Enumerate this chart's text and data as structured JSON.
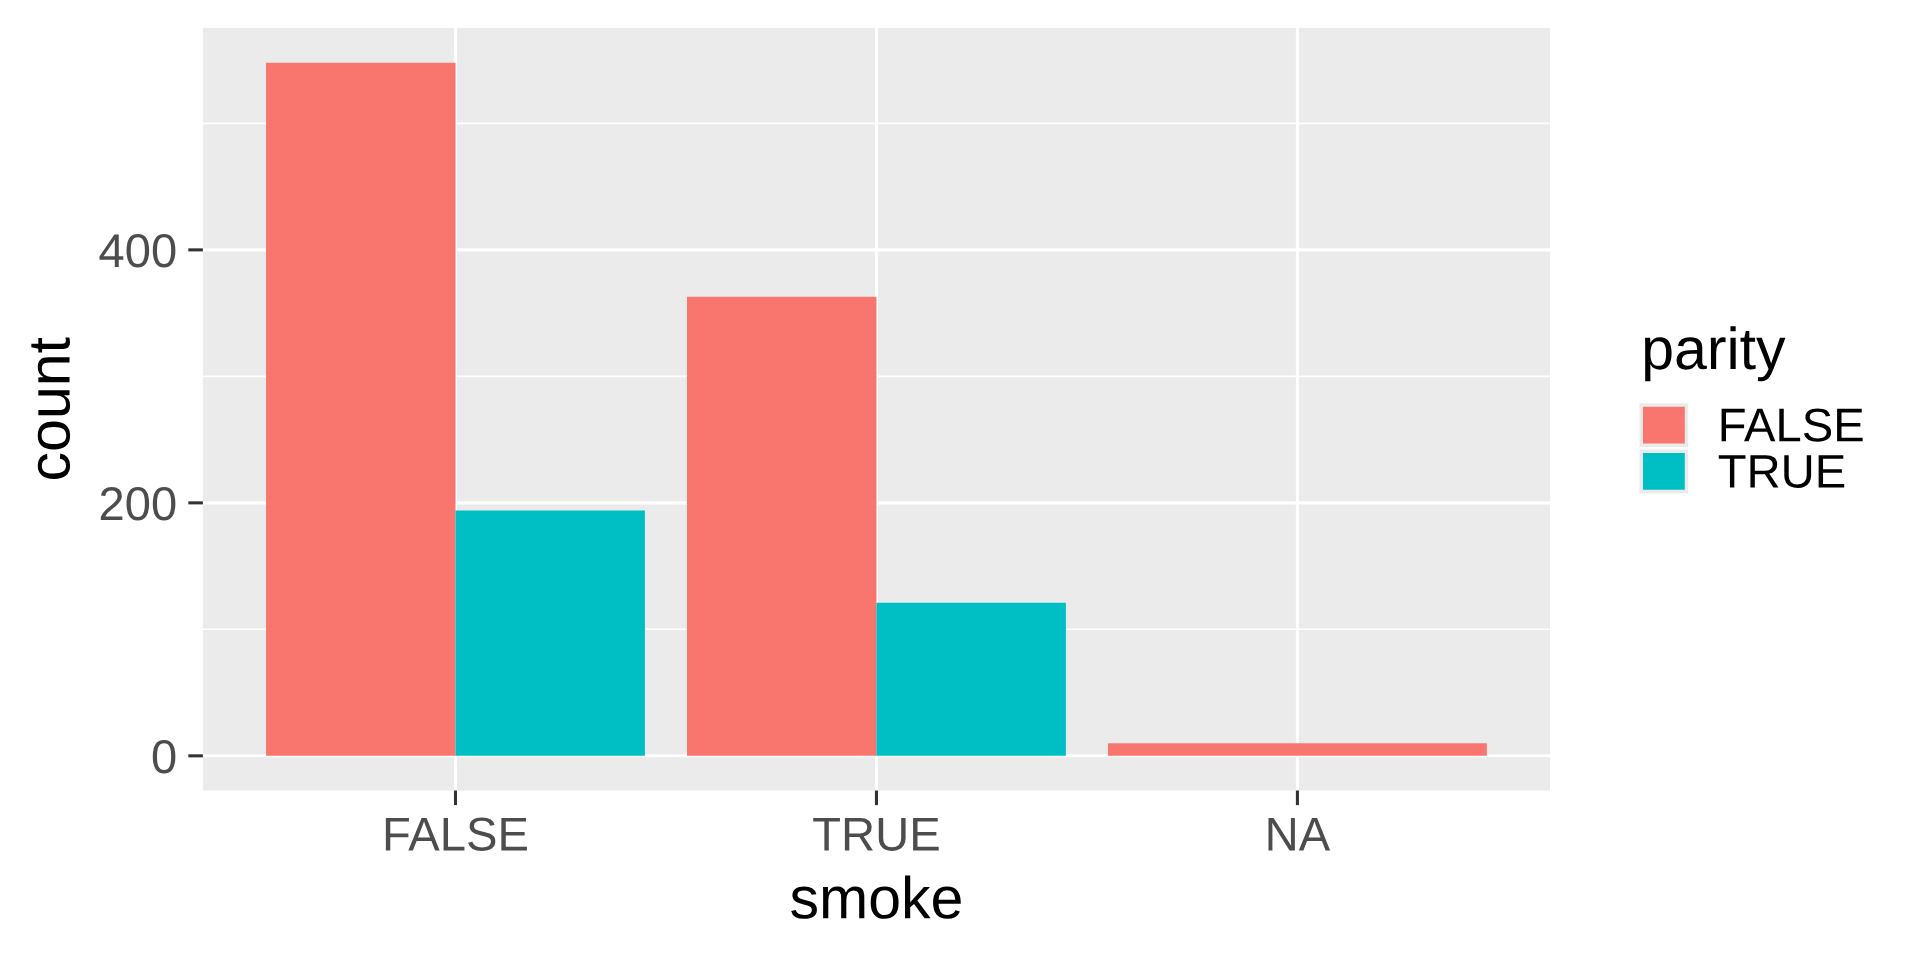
{
  "chart_data": {
    "type": "bar",
    "xlabel": "smoke",
    "ylabel": "count",
    "legend_title": "parity",
    "categories": [
      "FALSE",
      "TRUE",
      "NA"
    ],
    "series": [
      {
        "name": "FALSE",
        "color": "#f8766d",
        "values": [
          548,
          363,
          10
        ]
      },
      {
        "name": "TRUE",
        "color": "#00bfc4",
        "values": [
          194,
          121,
          null
        ]
      }
    ],
    "ylim": [
      -27.4,
      575.4
    ],
    "yticks": [
      0,
      200,
      400
    ],
    "grid": true,
    "legend": "right"
  }
}
